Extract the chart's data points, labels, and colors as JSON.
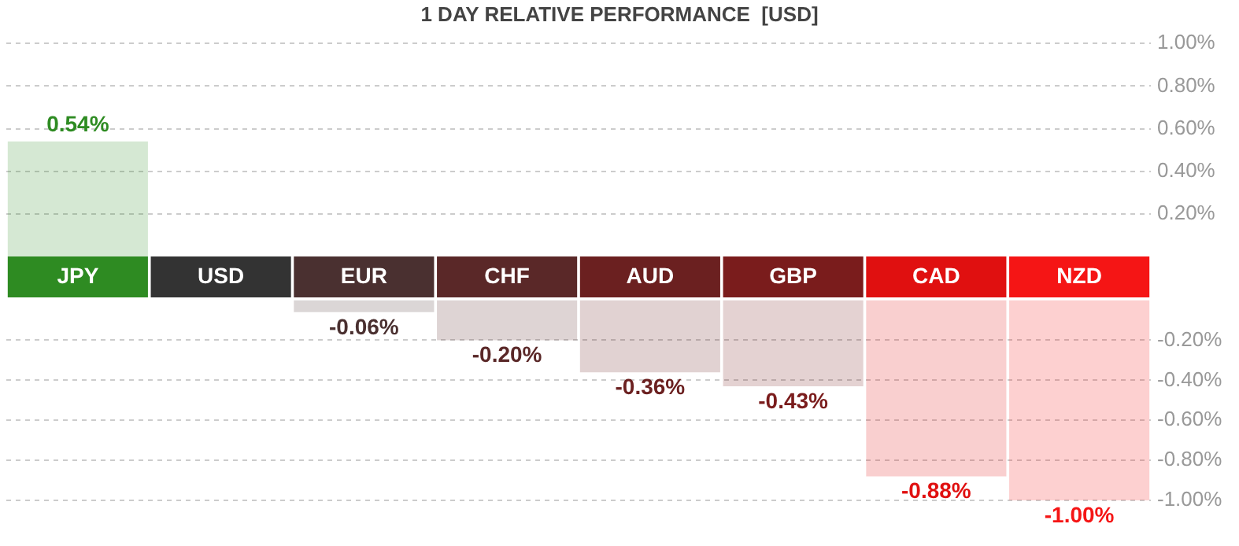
{
  "chart_data": [
    {
      "type": "bar",
      "title": "1 DAY RELATIVE PERFORMANCE  [USD]",
      "categories": [
        "JPY",
        "USD",
        "EUR",
        "CHF",
        "AUD",
        "GBP",
        "CAD",
        "NZD"
      ],
      "values": [
        0.54,
        0,
        null,
        null,
        null,
        null,
        null,
        null
      ],
      "colors": [
        "#2e8b22",
        "#333333",
        "#4a3030",
        "#5a2828",
        "#6b2020",
        "#7a1c1c",
        "#e01010",
        "#f51515"
      ],
      "value_labels": [
        "0.54%",
        null,
        null,
        null,
        null,
        null,
        null,
        null
      ],
      "ylim": [
        0,
        1.0
      ],
      "yticks": [
        {
          "value": 0.2,
          "label": "0.20%"
        },
        {
          "value": 0.4,
          "label": "0.40%"
        },
        {
          "value": 0.6,
          "label": "0.60%"
        },
        {
          "value": 0.8,
          "label": "0.80%"
        },
        {
          "value": 1.0,
          "label": "1.00%"
        }
      ],
      "grid": "y"
    },
    {
      "type": "bar",
      "categories": [
        null,
        null,
        null,
        null,
        null,
        null,
        null,
        null
      ],
      "values": [
        null,
        null,
        -0.06,
        -0.2,
        -0.36,
        -0.43,
        -0.88,
        -1.0
      ],
      "colors": [
        "#2e8b22",
        "#333333",
        "#4a3030",
        "#5a2828",
        "#6b2020",
        "#7a1c1c",
        "#e01010",
        "#f51515"
      ],
      "value_labels": [
        null,
        null,
        "-0.06%",
        "-0.20%",
        "-0.36%",
        "-0.43%",
        "-0.88%",
        "-1.00%"
      ],
      "ylim": [
        -1.0,
        0
      ],
      "yticks": [
        {
          "value": -1.0,
          "label": "-1.00%"
        },
        {
          "value": -0.8,
          "label": "-0.80%"
        },
        {
          "value": -0.6,
          "label": "-0.60%"
        },
        {
          "value": -0.4,
          "label": "-0.40%"
        },
        {
          "value": -0.2,
          "label": "-0.20%"
        }
      ],
      "grid": "y",
      "tick_labels": "y"
    }
  ]
}
